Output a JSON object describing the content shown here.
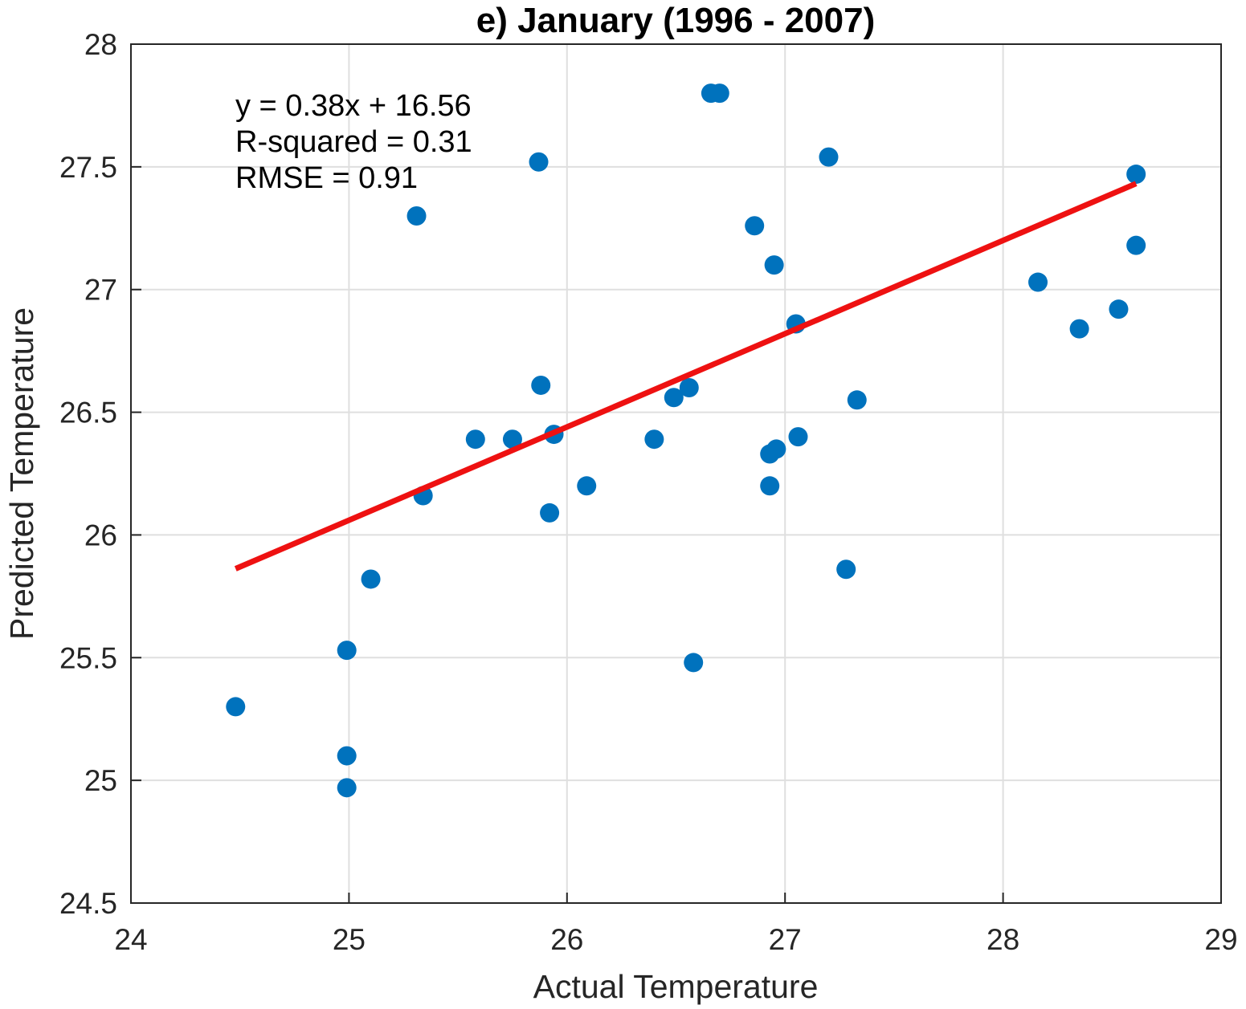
{
  "chart_data": {
    "type": "scatter",
    "title": "e) January (1996 - 2007)",
    "xlabel": "Actual Temperature",
    "ylabel": "Predicted Temperature",
    "xlim": [
      24,
      29
    ],
    "ylim": [
      24.5,
      28
    ],
    "xticks": [
      24,
      25,
      26,
      27,
      28,
      29
    ],
    "yticks": [
      24.5,
      25,
      25.5,
      26,
      26.5,
      27,
      27.5,
      28
    ],
    "xtick_labels": [
      "24",
      "25",
      "26",
      "27",
      "28",
      "29"
    ],
    "ytick_labels": [
      "24.5",
      "25",
      "25.5",
      "26",
      "26.5",
      "27",
      "27.5",
      "28"
    ],
    "grid": true,
    "annotations": [
      "y = 0.38x + 16.56",
      "R-squared = 0.31",
      "RMSE = 0.91"
    ],
    "series": [
      {
        "type": "scatter",
        "color": "#0072BD",
        "points": [
          [
            24.48,
            25.3
          ],
          [
            24.99,
            25.53
          ],
          [
            24.99,
            25.1
          ],
          [
            24.99,
            24.97
          ],
          [
            25.1,
            25.82
          ],
          [
            25.31,
            27.3
          ],
          [
            25.34,
            26.16
          ],
          [
            25.58,
            26.39
          ],
          [
            25.75,
            26.39
          ],
          [
            25.87,
            27.52
          ],
          [
            25.88,
            26.61
          ],
          [
            25.92,
            26.09
          ],
          [
            25.94,
            26.41
          ],
          [
            26.09,
            26.2
          ],
          [
            26.4,
            26.39
          ],
          [
            26.49,
            26.56
          ],
          [
            26.56,
            26.6
          ],
          [
            26.58,
            25.48
          ],
          [
            26.66,
            27.8
          ],
          [
            26.7,
            27.8
          ],
          [
            26.86,
            27.26
          ],
          [
            26.93,
            26.33
          ],
          [
            26.93,
            26.2
          ],
          [
            26.95,
            27.1
          ],
          [
            26.96,
            26.35
          ],
          [
            27.05,
            26.86
          ],
          [
            27.06,
            26.4
          ],
          [
            27.2,
            27.54
          ],
          [
            27.28,
            25.86
          ],
          [
            27.33,
            26.55
          ],
          [
            28.16,
            27.03
          ],
          [
            28.35,
            26.84
          ],
          [
            28.53,
            26.92
          ],
          [
            28.61,
            27.47
          ],
          [
            28.61,
            27.18
          ]
        ]
      },
      {
        "type": "line",
        "color": "#EE1111",
        "x": [
          24.48,
          28.61
        ],
        "slope": 0.38,
        "intercept": 16.56
      }
    ]
  }
}
